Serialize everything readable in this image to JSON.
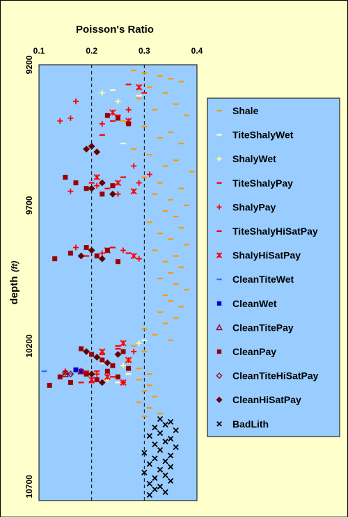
{
  "chart_data": {
    "type": "scatter",
    "title": "",
    "xlabel": "Poisson's Ratio",
    "ylabel": "depth",
    "ylabel_unit": "(ft)",
    "xlim": [
      0.1,
      0.4
    ],
    "ylim": [
      9200,
      10750
    ],
    "x_ticks": [
      "0.1",
      "0.2",
      "0.3",
      "0.4"
    ],
    "y_ticks": [
      "9200",
      "9700",
      "10200",
      "10700"
    ],
    "reference_lines_x": [
      0.2,
      0.3
    ],
    "background_color": "#99CCFF",
    "legend_position": "right",
    "series": [
      {
        "name": "Shale",
        "marker": "dash",
        "color": "#FF9900",
        "points": [
          [
            0.28,
            9220
          ],
          [
            0.3,
            9230
          ],
          [
            0.33,
            9240
          ],
          [
            0.35,
            9250
          ],
          [
            0.37,
            9260
          ],
          [
            0.31,
            9280
          ],
          [
            0.34,
            9300
          ],
          [
            0.29,
            9320
          ],
          [
            0.36,
            9340
          ],
          [
            0.32,
            9360
          ],
          [
            0.38,
            9380
          ],
          [
            0.26,
            9400
          ],
          [
            0.3,
            9420
          ],
          [
            0.35,
            9440
          ],
          [
            0.33,
            9460
          ],
          [
            0.37,
            9480
          ],
          [
            0.28,
            9500
          ],
          [
            0.31,
            9520
          ],
          [
            0.36,
            9540
          ],
          [
            0.34,
            9560
          ],
          [
            0.39,
            9580
          ],
          [
            0.3,
            9600
          ],
          [
            0.33,
            9620
          ],
          [
            0.37,
            9640
          ],
          [
            0.32,
            9660
          ],
          [
            0.35,
            9680
          ],
          [
            0.38,
            9700
          ],
          [
            0.34,
            9720
          ],
          [
            0.36,
            9740
          ],
          [
            0.31,
            9760
          ],
          [
            0.37,
            9780
          ],
          [
            0.33,
            9800
          ],
          [
            0.35,
            9820
          ],
          [
            0.38,
            9840
          ],
          [
            0.32,
            9860
          ],
          [
            0.36,
            9880
          ],
          [
            0.34,
            9900
          ],
          [
            0.37,
            9920
          ],
          [
            0.35,
            9940
          ],
          [
            0.33,
            9960
          ],
          [
            0.36,
            9980
          ],
          [
            0.38,
            10000
          ],
          [
            0.34,
            10020
          ],
          [
            0.35,
            10040
          ],
          [
            0.37,
            10060
          ],
          [
            0.33,
            10080
          ],
          [
            0.36,
            10100
          ],
          [
            0.34,
            10120
          ],
          [
            0.3,
            10140
          ],
          [
            0.32,
            10160
          ],
          [
            0.35,
            10180
          ],
          [
            0.28,
            10200
          ],
          [
            0.3,
            10220
          ],
          [
            0.27,
            10250
          ],
          [
            0.29,
            10280
          ],
          [
            0.31,
            10300
          ],
          [
            0.29,
            10320
          ],
          [
            0.31,
            10340
          ],
          [
            0.3,
            10360
          ],
          [
            0.32,
            10380
          ],
          [
            0.29,
            10400
          ],
          [
            0.31,
            10420
          ],
          [
            0.33,
            10440
          ],
          [
            0.3,
            10450
          ]
        ]
      },
      {
        "name": "TiteShalyWet",
        "marker": "dash",
        "color": "#FFFFCC",
        "points": [
          [
            0.24,
            9290
          ],
          [
            0.29,
            9310
          ],
          [
            0.26,
            9480
          ],
          [
            0.3,
            10180
          ],
          [
            0.22,
            10260
          ],
          [
            0.27,
            10300
          ],
          [
            0.25,
            10330
          ]
        ]
      },
      {
        "name": "ShalyWet",
        "marker": "plus",
        "color": "#FFFF99",
        "points": [
          [
            0.22,
            9300
          ],
          [
            0.25,
            9330
          ],
          [
            0.29,
            10190
          ],
          [
            0.26,
            10270
          ],
          [
            0.23,
            10320
          ]
        ]
      },
      {
        "name": "TiteShalyPay",
        "marker": "dash",
        "color": "#FF0000",
        "points": [
          [
            0.27,
            9270
          ],
          [
            0.3,
            9300
          ],
          [
            0.25,
            9380
          ],
          [
            0.22,
            9450
          ],
          [
            0.26,
            9600
          ],
          [
            0.2,
            9640
          ],
          [
            0.24,
            9850
          ],
          [
            0.27,
            9870
          ],
          [
            0.25,
            10210
          ],
          [
            0.22,
            10230
          ],
          [
            0.19,
            10290
          ],
          [
            0.24,
            10310
          ],
          [
            0.2,
            10330
          ]
        ]
      },
      {
        "name": "ShalyPay",
        "marker": "plus",
        "color": "#FF0000",
        "points": [
          [
            0.17,
            9330
          ],
          [
            0.16,
            9390
          ],
          [
            0.14,
            9400
          ],
          [
            0.22,
            9410
          ],
          [
            0.27,
            9360
          ],
          [
            0.19,
            9500
          ],
          [
            0.28,
            9560
          ],
          [
            0.31,
            9590
          ],
          [
            0.16,
            9650
          ],
          [
            0.21,
            9630
          ],
          [
            0.25,
            9660
          ],
          [
            0.29,
            9620
          ],
          [
            0.17,
            9850
          ],
          [
            0.22,
            9870
          ],
          [
            0.26,
            9860
          ],
          [
            0.29,
            9890
          ],
          [
            0.15,
            10290
          ],
          [
            0.21,
            10300
          ],
          [
            0.26,
            10330
          ],
          [
            0.28,
            10220
          ]
        ]
      },
      {
        "name": "TiteShalyHiSatPay",
        "marker": "dash",
        "color": "#FF0000",
        "points": [
          [
            0.24,
            9400
          ],
          [
            0.2,
            9620
          ],
          [
            0.23,
            9640
          ],
          [
            0.19,
            9880
          ],
          [
            0.25,
            10200
          ],
          [
            0.21,
            10290
          ],
          [
            0.18,
            10330
          ]
        ]
      },
      {
        "name": "ShalyHiSatPay",
        "marker": "asterisk",
        "color": "#FF0000",
        "points": [
          [
            0.29,
            9280
          ],
          [
            0.24,
            9370
          ],
          [
            0.27,
            9400
          ],
          [
            0.21,
            9600
          ],
          [
            0.25,
            9620
          ],
          [
            0.28,
            9650
          ],
          [
            0.23,
            9860
          ],
          [
            0.28,
            9880
          ],
          [
            0.26,
            10190
          ],
          [
            0.22,
            10220
          ],
          [
            0.27,
            10250
          ],
          [
            0.23,
            10310
          ],
          [
            0.26,
            10330
          ],
          [
            0.2,
            10320
          ]
        ]
      },
      {
        "name": "CleanTiteWet",
        "marker": "dash",
        "color": "#3366FF",
        "points": [
          [
            0.11,
            10290
          ],
          [
            0.16,
            10300
          ]
        ]
      },
      {
        "name": "CleanWet",
        "marker": "square",
        "color": "#0000CC",
        "points": [
          [
            0.17,
            10285
          ],
          [
            0.18,
            10290
          ]
        ]
      },
      {
        "name": "CleanTitePay",
        "marker": "triangle",
        "color": "#990033",
        "points": [
          [
            0.18,
            10290
          ],
          [
            0.15,
            10300
          ]
        ]
      },
      {
        "name": "CleanPay",
        "marker": "square",
        "color": "#990000",
        "points": [
          [
            0.23,
            9380
          ],
          [
            0.25,
            9390
          ],
          [
            0.27,
            9410
          ],
          [
            0.13,
            9890
          ],
          [
            0.16,
            9870
          ],
          [
            0.19,
            9850
          ],
          [
            0.21,
            9880
          ],
          [
            0.23,
            9860
          ],
          [
            0.25,
            9900
          ],
          [
            0.15,
            9600
          ],
          [
            0.17,
            9620
          ],
          [
            0.19,
            9640
          ],
          [
            0.22,
            9660
          ],
          [
            0.24,
            9630
          ],
          [
            0.18,
            10210
          ],
          [
            0.2,
            10230
          ],
          [
            0.22,
            10250
          ],
          [
            0.24,
            10270
          ],
          [
            0.26,
            10220
          ],
          [
            0.19,
            10300
          ],
          [
            0.21,
            10320
          ],
          [
            0.23,
            10290
          ],
          [
            0.25,
            10310
          ],
          [
            0.12,
            10340
          ],
          [
            0.14,
            10310
          ],
          [
            0.16,
            10330
          ],
          [
            0.27,
            10280
          ]
        ]
      },
      {
        "name": "CleanTiteHiSatPay",
        "marker": "diamond-open",
        "color": "#990000",
        "points": [
          [
            0.16,
            10300
          ],
          [
            0.15,
            10295
          ]
        ]
      },
      {
        "name": "CleanHiSatPay",
        "marker": "diamond",
        "color": "#660000",
        "points": [
          [
            0.19,
            9500
          ],
          [
            0.2,
            9490
          ],
          [
            0.21,
            9510
          ],
          [
            0.2,
            9640
          ],
          [
            0.22,
            9620
          ],
          [
            0.24,
            9660
          ],
          [
            0.18,
            9880
          ],
          [
            0.2,
            9860
          ],
          [
            0.22,
            9890
          ],
          [
            0.19,
            10220
          ],
          [
            0.21,
            10240
          ],
          [
            0.23,
            10260
          ],
          [
            0.25,
            10230
          ],
          [
            0.2,
            10300
          ],
          [
            0.22,
            10330
          ]
        ]
      },
      {
        "name": "BadLith",
        "marker": "x",
        "color": "#000000",
        "points": [
          [
            0.33,
            10460
          ],
          [
            0.35,
            10470
          ],
          [
            0.34,
            10480
          ],
          [
            0.32,
            10490
          ],
          [
            0.36,
            10500
          ],
          [
            0.33,
            10510
          ],
          [
            0.31,
            10520
          ],
          [
            0.35,
            10530
          ],
          [
            0.34,
            10540
          ],
          [
            0.32,
            10550
          ],
          [
            0.36,
            10560
          ],
          [
            0.33,
            10570
          ],
          [
            0.3,
            10580
          ],
          [
            0.35,
            10590
          ],
          [
            0.32,
            10600
          ],
          [
            0.34,
            10610
          ],
          [
            0.31,
            10620
          ],
          [
            0.35,
            10630
          ],
          [
            0.33,
            10640
          ],
          [
            0.3,
            10650
          ],
          [
            0.34,
            10660
          ],
          [
            0.32,
            10670
          ],
          [
            0.35,
            10680
          ],
          [
            0.31,
            10690
          ],
          [
            0.33,
            10700
          ],
          [
            0.32,
            10710
          ],
          [
            0.34,
            10720
          ],
          [
            0.31,
            10730
          ]
        ]
      }
    ]
  }
}
